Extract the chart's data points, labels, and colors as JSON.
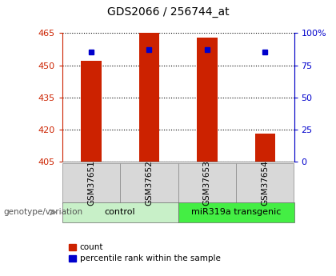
{
  "title": "GDS2066 / 256744_at",
  "samples": [
    "GSM37651",
    "GSM37652",
    "GSM37653",
    "GSM37654"
  ],
  "count_values": [
    452,
    465,
    463,
    418
  ],
  "percentile_values": [
    85,
    87,
    87,
    85
  ],
  "ymin": 405,
  "ymax": 465,
  "yticks": [
    405,
    420,
    435,
    450,
    465
  ],
  "y_right_ticks": [
    0,
    25,
    50,
    75,
    100
  ],
  "bar_color": "#cc2200",
  "percentile_color": "#0000cc",
  "bar_width": 0.35,
  "legend_label_count": "count",
  "legend_label_pct": "percentile rank within the sample",
  "genotype_label": "genotype/variation",
  "background_color": "#ffffff",
  "plot_bg_color": "#ffffff",
  "tick_color_left": "#cc2200",
  "tick_color_right": "#0000cc",
  "sample_box_color": "#d8d8d8",
  "group_info": [
    {
      "label": "control",
      "start": 0,
      "end": 2,
      "color": "#c8f0c8"
    },
    {
      "label": "miR319a transgenic",
      "start": 2,
      "end": 4,
      "color": "#44ee44"
    }
  ]
}
